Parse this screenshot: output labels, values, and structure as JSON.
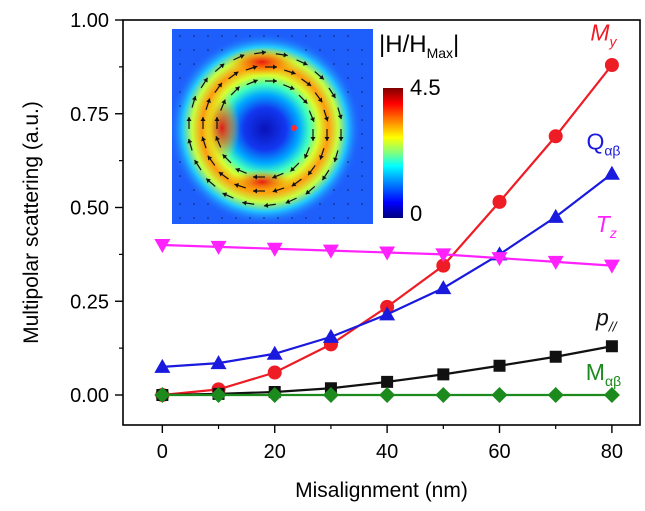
{
  "chart_data": {
    "type": "line",
    "xlabel": "Misalignment (nm)",
    "ylabel": "Multipolar scattering (a.u.)",
    "xlim": [
      -7,
      85
    ],
    "ylim": [
      -0.08,
      1.0
    ],
    "xticks": [
      0,
      20,
      40,
      60,
      80
    ],
    "xtick_labels": [
      "0",
      "20",
      "40",
      "60",
      "80"
    ],
    "yticks": [
      0.0,
      0.25,
      0.5,
      0.75,
      1.0
    ],
    "ytick_labels": [
      "0.00",
      "0.25",
      "0.50",
      "0.75",
      "1.00"
    ],
    "grid": false,
    "legend": "labels placed next to each curve on the right",
    "x": [
      0,
      10,
      20,
      30,
      40,
      50,
      60,
      70,
      80
    ],
    "series": [
      {
        "key": "My",
        "label_main": "M",
        "label_sub": "y",
        "italic": true,
        "color": "#ee1c25",
        "marker": "circle",
        "label_x": 78.5,
        "label_y": 0.945,
        "values": [
          0.0,
          0.015,
          0.06,
          0.135,
          0.235,
          0.345,
          0.515,
          0.69,
          0.88
        ]
      },
      {
        "key": "Qab",
        "label_main": "Q",
        "label_sub": "αβ",
        "italic": false,
        "color": "#1a1adf",
        "marker": "triangle-up",
        "label_x": 78.5,
        "label_y": 0.655,
        "values": [
          0.075,
          0.085,
          0.11,
          0.155,
          0.215,
          0.285,
          0.375,
          0.475,
          0.59
        ]
      },
      {
        "key": "Tz",
        "label_main": "T",
        "label_sub": "z",
        "italic": true,
        "color": "#ff22ff",
        "marker": "triangle-down",
        "label_x": 79.0,
        "label_y": 0.435,
        "values": [
          0.4,
          0.395,
          0.39,
          0.385,
          0.38,
          0.375,
          0.365,
          0.355,
          0.345
        ]
      },
      {
        "key": "p",
        "label_main": "p",
        "label_sub": "//",
        "italic": true,
        "color": "#111111",
        "marker": "square",
        "label_x": 79.0,
        "label_y": 0.185,
        "values": [
          0.0,
          0.003,
          0.008,
          0.018,
          0.035,
          0.055,
          0.078,
          0.102,
          0.13
        ]
      },
      {
        "key": "Mab",
        "label_main": "M",
        "label_sub": "αβ",
        "italic": false,
        "color": "#1d8a1d",
        "marker": "diamond",
        "label_x": 78.5,
        "label_y": 0.04,
        "values": [
          0.0,
          0.0,
          0.0,
          0.0,
          0.0,
          0.0,
          0.0,
          0.0,
          0.0
        ]
      }
    ],
    "inset": {
      "type": "heatmap with vector field",
      "colorbar_title_main": "|H/H",
      "colorbar_title_sub": "Max",
      "colorbar_title_end": "|",
      "colorbar_max_label": "4.5",
      "colorbar_min_label": "0",
      "colormap": [
        "#00007f",
        "#0000ff",
        "#00a0ff",
        "#00ffff",
        "#7fff7f",
        "#ffff00",
        "#ff8000",
        "#ff0000",
        "#7f0000"
      ],
      "background_color": "#1e5ffc",
      "marker_color": "#ff2a2a"
    }
  }
}
